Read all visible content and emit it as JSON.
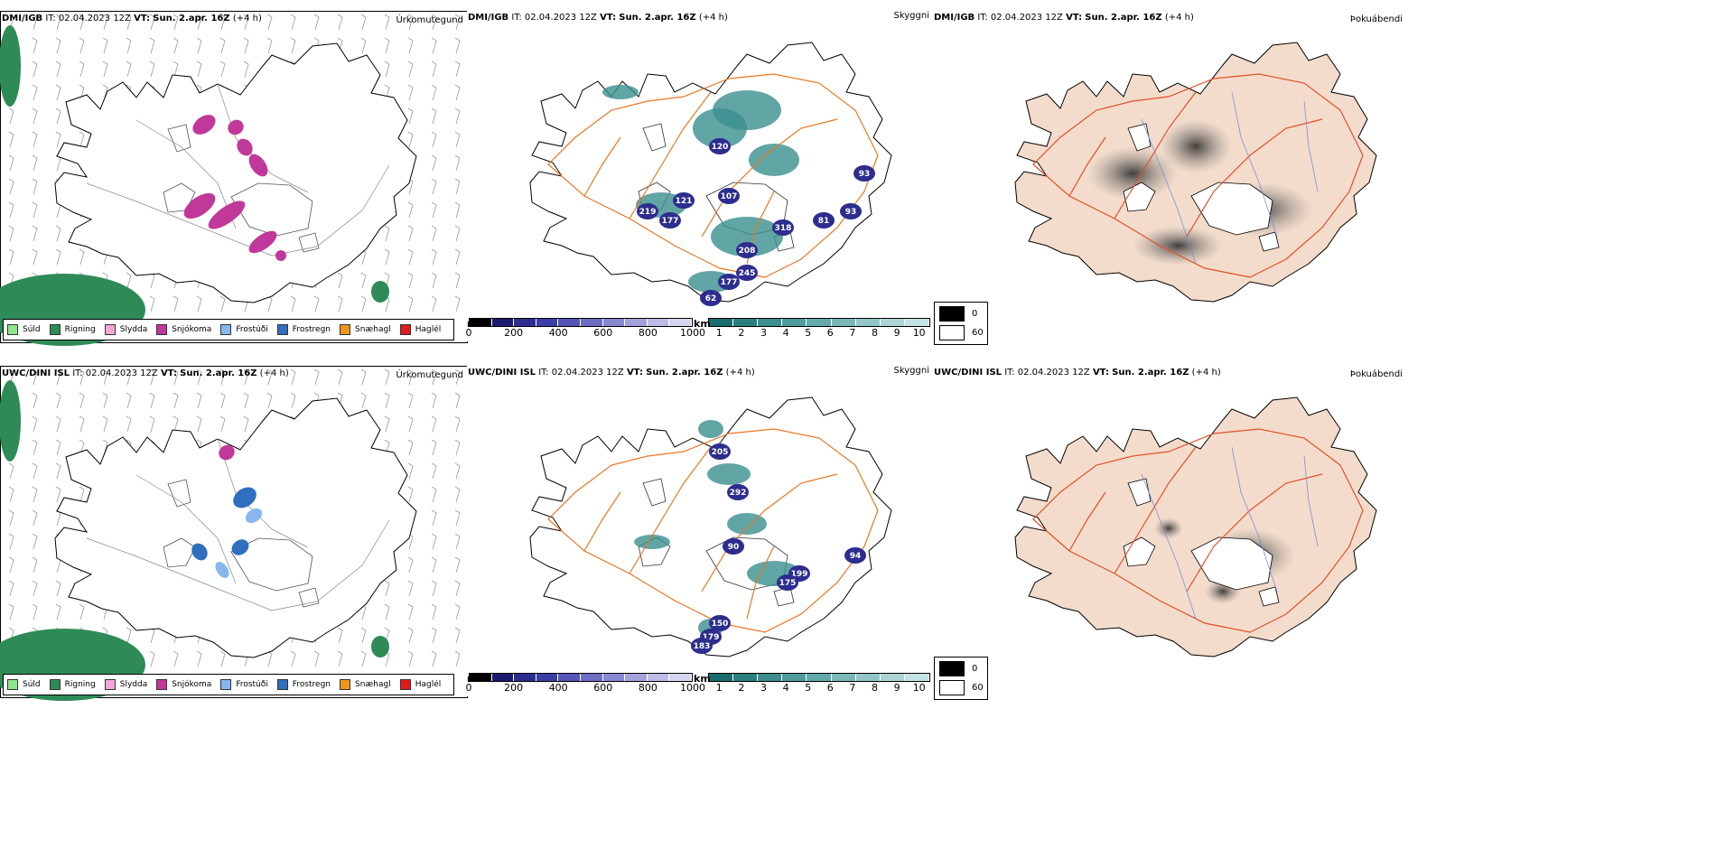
{
  "rows": [
    {
      "model": "DMI/IGB",
      "it": "IT: 02.04.2023 12Z",
      "vt_label": "VT:",
      "vt": "Sun. 2.apr. 16Z",
      "lead": "(+4 h)",
      "panel1_title": "Úrkomutegund",
      "panel2_title": "Skyggni",
      "panel3_title": "Þokuábendi",
      "cloud_labels": [
        "121",
        "107",
        "219",
        "177",
        "120",
        "93",
        "93",
        "81",
        "318",
        "245",
        "177",
        "208",
        "62"
      ]
    },
    {
      "model": "UWC/DINI ISL",
      "it": "IT: 02.04.2023 12Z",
      "vt_label": "VT:",
      "vt": "Sun. 2.apr. 16Z",
      "lead": "(+4 h)",
      "panel1_title": "Úrkomutegund",
      "panel2_title": "Skyggni",
      "panel3_title": "Þokuábendi",
      "cloud_labels": [
        "205",
        "292",
        "90",
        "199",
        "175",
        "94",
        "150",
        "179",
        "183"
      ]
    }
  ],
  "precip_legend": [
    {
      "label": "Súld",
      "color": "#8ce68c"
    },
    {
      "label": "Rigning",
      "color": "#2e8b57"
    },
    {
      "label": "Slydda",
      "color": "#f4a6d7"
    },
    {
      "label": "Snjókoma",
      "color": "#c0399a"
    },
    {
      "label": "Frostúði",
      "color": "#87b7ee"
    },
    {
      "label": "Frostregn",
      "color": "#2f6fbf"
    },
    {
      "label": "Snæhagl",
      "color": "#f0961e"
    },
    {
      "label": "Haglél",
      "color": "#e01b1b"
    }
  ],
  "ceiling_bar": {
    "unit": "m",
    "ticks": [
      "0",
      "200",
      "400",
      "600",
      "800",
      "1000"
    ],
    "colors": [
      "#000000",
      "#1a1a70",
      "#2d2d8f",
      "#3d3da8",
      "#5454b8",
      "#6e6ec6",
      "#8888d2",
      "#a2a2dc",
      "#bcbce6",
      "#d6d6f0"
    ]
  },
  "visibility_bar": {
    "unit": "km",
    "ticks": [
      "1",
      "2",
      "3",
      "4",
      "5",
      "6",
      "7",
      "8",
      "9",
      "10"
    ],
    "colors": [
      "#1b6d6d",
      "#2a7f7f",
      "#3b8f8f",
      "#4e9c9c",
      "#64aaaa",
      "#7ab8b8",
      "#92c6c6",
      "#abd5d5",
      "#c4e3e3"
    ]
  },
  "fog_legend": {
    "values": [
      "0",
      "60"
    ],
    "colors": [
      "#000000",
      "#ffffff"
    ]
  },
  "colors": {
    "roads": "#e87722",
    "fog_land": "#f3dccb",
    "fog_roads": "#e0502c",
    "rivers": "#7a8ee0"
  }
}
